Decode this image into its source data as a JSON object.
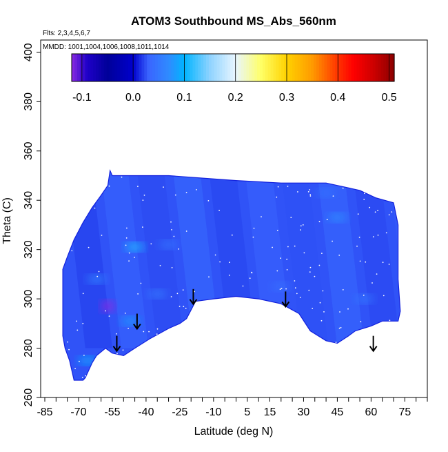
{
  "chart_data": {
    "type": "heatmap",
    "title": "ATOM3 Southbound MS_Abs_560nm",
    "flights_note": "Flts: 2,3,4,5,6,7",
    "dates_note": "MMDD: 1001,1004,1006,1008,1011,1014",
    "xlabel": "Latitude (deg N)",
    "ylabel": "Theta (C)",
    "xlim": [
      -85,
      85
    ],
    "ylim": [
      260,
      405
    ],
    "x_ticks": [
      -85,
      -80,
      -75,
      -70,
      -65,
      -60,
      -55,
      -50,
      -45,
      -40,
      -35,
      -30,
      -25,
      -20,
      -15,
      -10,
      -5,
      0,
      5,
      10,
      15,
      20,
      25,
      30,
      35,
      40,
      45,
      50,
      55,
      60,
      65,
      70,
      75,
      80,
      85
    ],
    "x_tick_labels": [
      "-85",
      "-70",
      "-55",
      "-40",
      "-25",
      "-10",
      "5",
      "15",
      "30",
      "45",
      "60",
      "75"
    ],
    "x_tick_label_values": [
      -85,
      -70,
      -55,
      -40,
      -25,
      -10,
      5,
      15,
      30,
      45,
      60,
      75
    ],
    "y_tick_labels": [
      "260",
      "280",
      "300",
      "320",
      "340",
      "360",
      "380",
      "400"
    ],
    "colorbar": {
      "range": [
        -0.12,
        0.51
      ],
      "tick_labels": [
        "-0.1",
        "0.0",
        "0.1",
        "0.2",
        "0.3",
        "0.4",
        "0.5"
      ],
      "tick_values": [
        -0.1,
        0.0,
        0.1,
        0.2,
        0.3,
        0.4,
        0.5
      ],
      "position": "top inside plot"
    },
    "colorscale": [
      [
        -0.12,
        "#8a2be2"
      ],
      [
        -0.09,
        "#1f00c8"
      ],
      [
        -0.05,
        "#000099"
      ],
      [
        0.0,
        "#0000cc"
      ],
      [
        0.03,
        "#3a64ff"
      ],
      [
        0.07,
        "#2f8cff"
      ],
      [
        0.1,
        "#00b4ff"
      ],
      [
        0.15,
        "#8fd3ff"
      ],
      [
        0.2,
        "#e9f6ff"
      ],
      [
        0.25,
        "#ffff66"
      ],
      [
        0.3,
        "#ffd200"
      ],
      [
        0.35,
        "#ff9a00"
      ],
      [
        0.4,
        "#ff3300"
      ],
      [
        0.43,
        "#ff0000"
      ],
      [
        0.47,
        "#cc0000"
      ],
      [
        0.51,
        "#8b0000"
      ]
    ],
    "field_value_range": [
      -0.06,
      0.12
    ],
    "coverage_outline": [
      [
        -77,
        295
      ],
      [
        -77,
        312
      ],
      [
        -75,
        317
      ],
      [
        -72,
        324
      ],
      [
        -68,
        331
      ],
      [
        -64,
        337
      ],
      [
        -60,
        342
      ],
      [
        -57,
        346
      ],
      [
        -56,
        352
      ],
      [
        -55,
        350
      ],
      [
        -30,
        350
      ],
      [
        0,
        348
      ],
      [
        20,
        347
      ],
      [
        40,
        347
      ],
      [
        55,
        344
      ],
      [
        62,
        341
      ],
      [
        70,
        339
      ],
      [
        72,
        330
      ],
      [
        72,
        308
      ],
      [
        73,
        295
      ],
      [
        72,
        291
      ],
      [
        65,
        291
      ],
      [
        60,
        289
      ],
      [
        53,
        287
      ],
      [
        50,
        285
      ],
      [
        45,
        282
      ],
      [
        40,
        283
      ],
      [
        33,
        287
      ],
      [
        28,
        294
      ],
      [
        20,
        298
      ],
      [
        10,
        300
      ],
      [
        0,
        301
      ],
      [
        -10,
        300
      ],
      [
        -18,
        299
      ],
      [
        -22,
        292
      ],
      [
        -25,
        290
      ],
      [
        -30,
        288
      ],
      [
        -38,
        284
      ],
      [
        -45,
        280
      ],
      [
        -50,
        277
      ],
      [
        -55,
        278
      ],
      [
        -58,
        280
      ],
      [
        -62,
        277
      ],
      [
        -64,
        274
      ],
      [
        -67,
        268
      ],
      [
        -68,
        267
      ],
      [
        -72,
        267
      ],
      [
        -74,
        275
      ],
      [
        -76,
        280
      ],
      [
        -77,
        285
      ]
    ],
    "anomalies": [
      {
        "lat": -57,
        "theta": 297,
        "value": -0.12
      },
      {
        "lat": -45,
        "theta": 321,
        "value": 0.11
      },
      {
        "lat": -66,
        "theta": 275,
        "value": 0.09
      },
      {
        "lat": -47,
        "theta": 291,
        "value": 0.08
      },
      {
        "lat": 45,
        "theta": 333,
        "value": 0.07
      },
      {
        "lat": -62,
        "theta": 308,
        "value": 0.06
      },
      {
        "lat": -35,
        "theta": 302,
        "value": 0.05
      },
      {
        "lat": 20,
        "theta": 305,
        "value": 0.04
      },
      {
        "lat": 57,
        "theta": 300,
        "value": 0.05
      },
      {
        "lat": 40,
        "theta": 343,
        "value": 0.045
      },
      {
        "lat": -30,
        "theta": 322,
        "value": 0.045
      }
    ],
    "ground_arrows": [
      {
        "lat": -53,
        "theta": 285
      },
      {
        "lat": -44,
        "theta": 294
      },
      {
        "lat": -19,
        "theta": 304
      },
      {
        "lat": 22,
        "theta": 303
      },
      {
        "lat": 61,
        "theta": 285
      }
    ]
  }
}
